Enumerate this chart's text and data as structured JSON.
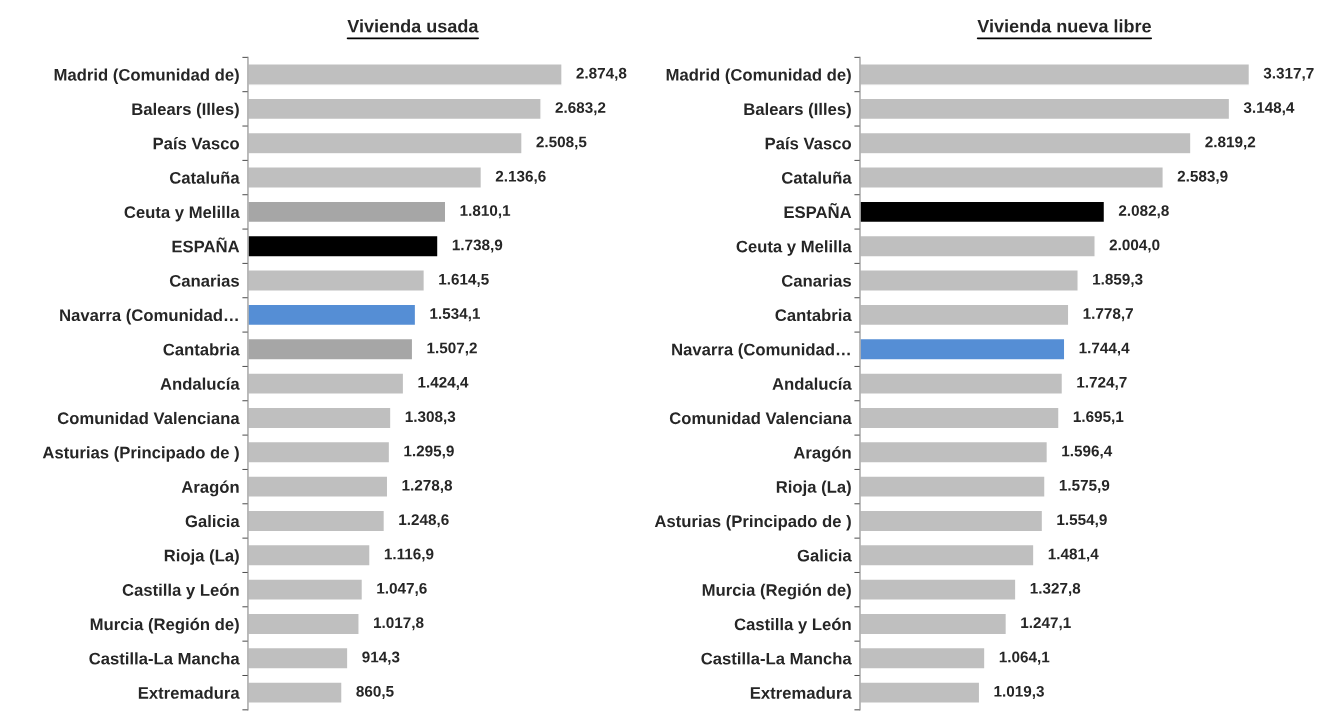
{
  "chart_data": [
    {
      "type": "bar",
      "orientation": "horizontal",
      "title": "Vivienda usada",
      "categories": [
        "Madrid (Comunidad de)",
        "Balears (Illes)",
        "País Vasco",
        "Cataluña",
        "Ceuta y Melilla",
        "ESPAÑA",
        "Canarias",
        "Navarra (Comunidad…",
        "Cantabria",
        "Andalucía",
        "Comunidad Valenciana",
        "Asturias (Principado de )",
        "Aragón",
        "Galicia",
        "Rioja (La)",
        "Castilla y León",
        "Murcia (Región de)",
        "Castilla-La Mancha",
        "Extremadura"
      ],
      "values": [
        2874.8,
        2683.2,
        2508.5,
        2136.6,
        1810.1,
        1738.9,
        1614.5,
        1534.1,
        1507.2,
        1424.4,
        1308.3,
        1295.9,
        1278.8,
        1248.6,
        1116.9,
        1047.6,
        1017.8,
        914.3,
        860.5
      ],
      "colors": [
        "#bfbfbf",
        "#bfbfbf",
        "#bfbfbf",
        "#bfbfbf",
        "#a6a6a6",
        "#000000",
        "#bfbfbf",
        "#558ed5",
        "#a6a6a6",
        "#bfbfbf",
        "#bfbfbf",
        "#bfbfbf",
        "#bfbfbf",
        "#bfbfbf",
        "#bfbfbf",
        "#bfbfbf",
        "#bfbfbf",
        "#bfbfbf",
        "#bfbfbf"
      ],
      "value_labels": [
        "2.874,8",
        "2.683,2",
        "2.508,5",
        "2.136,6",
        "1.810,1",
        "1.738,9",
        "1.614,5",
        "1.534,1",
        "1.507,2",
        "1.424,4",
        "1.308,3",
        "1.295,9",
        "1.278,8",
        "1.248,6",
        "1.116,9",
        "1.047,6",
        "1.017,8",
        "914,3",
        "860,5"
      ]
    },
    {
      "type": "bar",
      "orientation": "horizontal",
      "title": "Vivienda nueva libre",
      "categories": [
        "Madrid (Comunidad de)",
        "Balears (Illes)",
        "País Vasco",
        "Cataluña",
        "ESPAÑA",
        "Ceuta y Melilla",
        "Canarias",
        "Cantabria",
        "Navarra (Comunidad…",
        "Andalucía",
        "Comunidad Valenciana",
        "Aragón",
        "Rioja (La)",
        "Asturias (Principado de )",
        "Galicia",
        "Murcia (Región de)",
        "Castilla y León",
        "Castilla-La Mancha",
        "Extremadura"
      ],
      "values": [
        3317.7,
        3148.4,
        2819.2,
        2583.9,
        2082.8,
        2004.0,
        1859.3,
        1778.7,
        1744.4,
        1724.7,
        1695.1,
        1596.4,
        1575.9,
        1554.9,
        1481.4,
        1327.8,
        1247.1,
        1064.1,
        1019.3
      ],
      "colors": [
        "#bfbfbf",
        "#bfbfbf",
        "#bfbfbf",
        "#bfbfbf",
        "#000000",
        "#bfbfbf",
        "#bfbfbf",
        "#bfbfbf",
        "#558ed5",
        "#bfbfbf",
        "#bfbfbf",
        "#bfbfbf",
        "#bfbfbf",
        "#bfbfbf",
        "#bfbfbf",
        "#bfbfbf",
        "#bfbfbf",
        "#bfbfbf",
        "#bfbfbf"
      ],
      "value_labels": [
        "3.317,7",
        "3.148,4",
        "2.819,2",
        "2.583,9",
        "2.082,8",
        "2.004,0",
        "1.859,3",
        "1.778,7",
        "1.744,4",
        "1.724,7",
        "1.695,1",
        "1.596,4",
        "1.575,9",
        "1.554,9",
        "1.481,4",
        "1.327,8",
        "1.247,1",
        "1.064,1",
        "1.019,3"
      ]
    }
  ]
}
